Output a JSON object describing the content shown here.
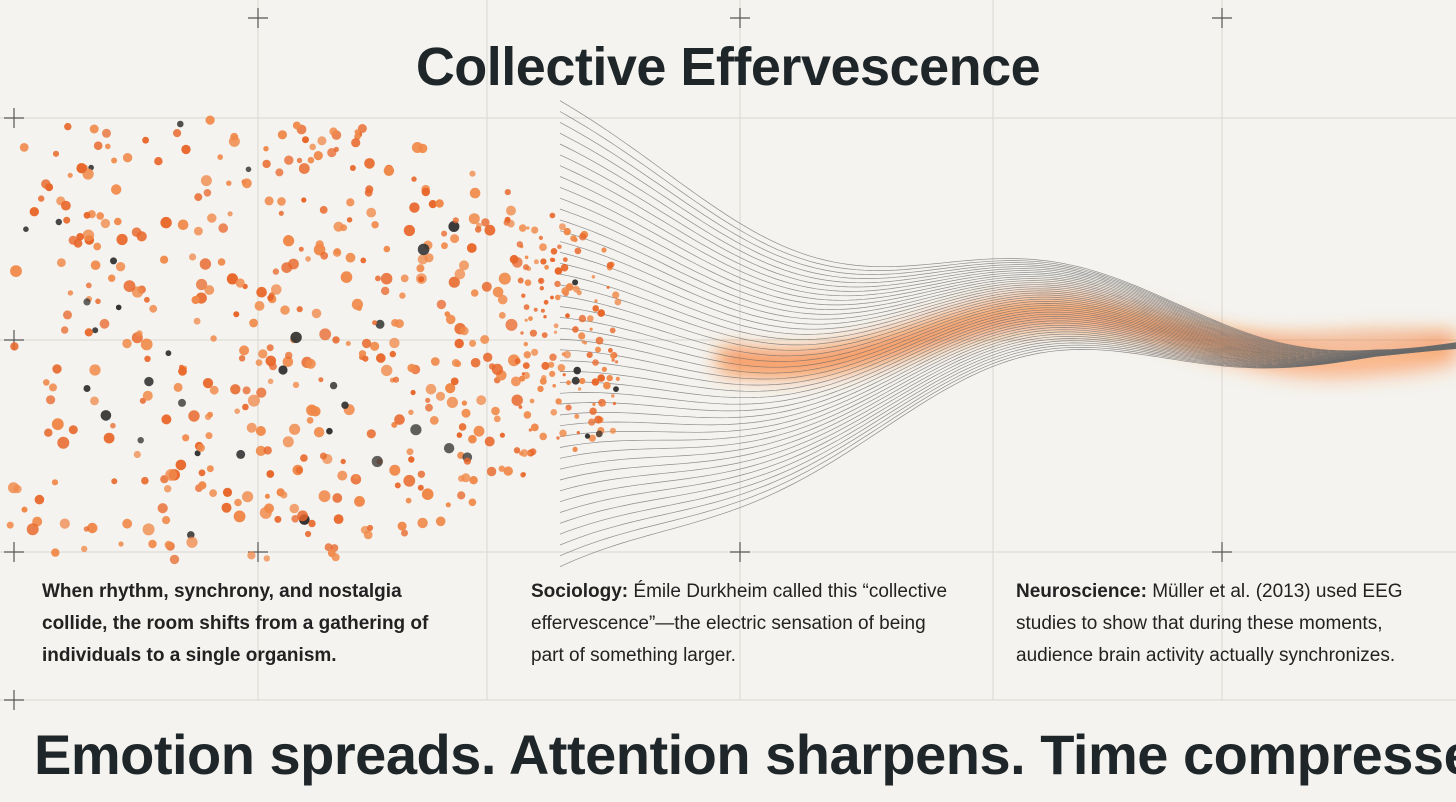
{
  "title": "Collective Effervescence",
  "columns": [
    {
      "text": "When rhythm, synchrony, and nostalgia collide, the room shifts from a gathering of individuals to a single organism."
    },
    {
      "lead": "Sociology:",
      "text": "Émile Durkheim called this “collective effervescence”—the electric sensation of being part of something larger."
    },
    {
      "lead": "Neuroscience:",
      "text": "Müller et al. (2013) used EEG studies to show that during these moments, audience brain activity actually synchronizes."
    }
  ],
  "tagline": "Emotion spreads. Attention sharpens. Time compresses."
}
